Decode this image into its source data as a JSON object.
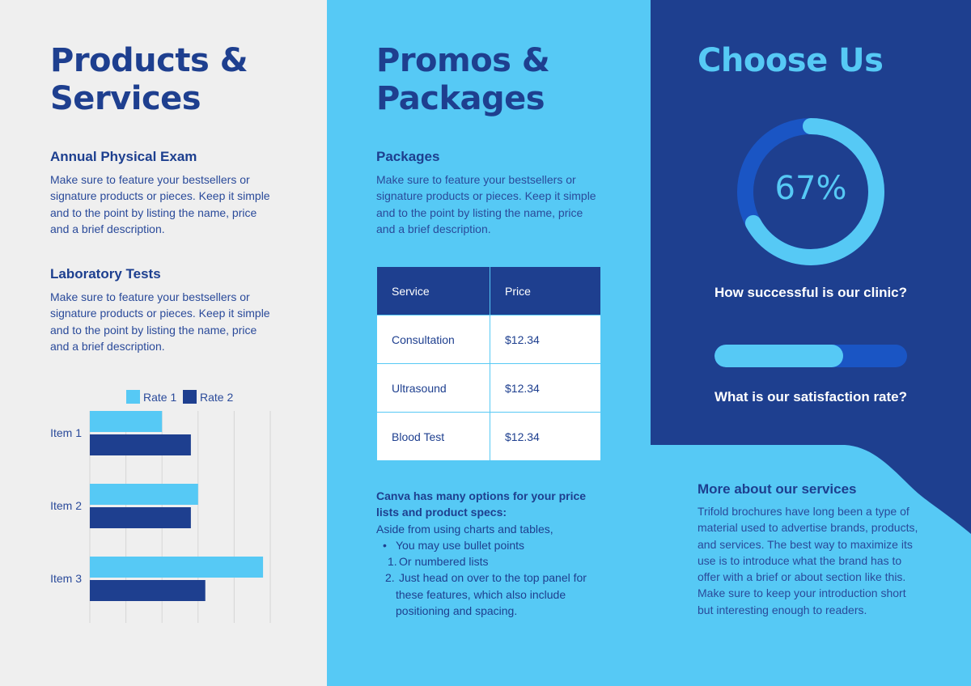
{
  "left": {
    "title_line1": "Products &",
    "title_line2": "Services",
    "section1": {
      "heading": "Annual Physical Exam",
      "lines": [
        "Make sure to feature your bestsellers or",
        "signature products or pieces. Keep it simple",
        "and to the point by listing the name, price",
        "and a brief description."
      ]
    },
    "section2": {
      "heading": "Laboratory Tests",
      "lines": [
        "Make sure to feature your bestsellers or",
        "signature products or pieces. Keep it simple",
        "and to the point by listing the name, price",
        "and a brief description."
      ]
    }
  },
  "chart_data": {
    "type": "bar",
    "orientation": "horizontal",
    "categories": [
      "Item 1",
      "Item 2",
      "Item 3"
    ],
    "series": [
      {
        "name": "Rate 1",
        "values": [
          10,
          15,
          24
        ],
        "color": "#56c9f5"
      },
      {
        "name": "Rate 2",
        "values": [
          14,
          14,
          16
        ],
        "color": "#1e3f8f"
      }
    ],
    "xticks": [
      "0",
      "5",
      "10",
      "15",
      "20",
      "25"
    ],
    "xlim": [
      0,
      25
    ],
    "grid": true,
    "legend": "top"
  },
  "middle": {
    "title_line1": "Promos &",
    "title_line2": "Packages",
    "packages_heading": "Packages",
    "packages_lines": [
      "Make sure to feature your bestsellers or",
      "signature products or pieces. Keep it simple",
      "and to the point by listing the name, price",
      "and a brief description."
    ],
    "table": {
      "headers": [
        "Service",
        "Price"
      ],
      "rows": [
        [
          "Consultation",
          "$12.34"
        ],
        [
          "Ultrasound",
          "$12.34"
        ],
        [
          "Blood Test",
          "$12.34"
        ]
      ]
    },
    "note_bold_line1": "Canva has many options for your price",
    "note_bold_line2": "lists and product specs:",
    "note_intro": "Aside from using charts and tables,",
    "bullet": "You may use bullet points",
    "numbered": [
      "Or numbered lists",
      "Just head on over to the top panel for"
    ],
    "numbered_cont": [
      "these features, which also include",
      "positioning and spacing."
    ]
  },
  "right": {
    "title": "Choose Us",
    "donut_label": "67%",
    "donut_value": 0.67,
    "question1": "How successful is our clinic?",
    "progress_value": 0.67,
    "question2": "What is our satisfaction rate?",
    "more_heading": "More about our services",
    "more_lines": [
      "Trifold brochures have long been a type of",
      "material used to advertise brands, products,",
      "and services. The best way to maximize its",
      "use is to introduce what the brand has to",
      "offer with a brief or about section like this.",
      "Make sure to keep your introduction short",
      "but interesting enough to readers."
    ],
    "colors": {
      "dark": "#1e3f8f",
      "accent": "#56c9f5",
      "mid": "#1a55c4"
    }
  }
}
